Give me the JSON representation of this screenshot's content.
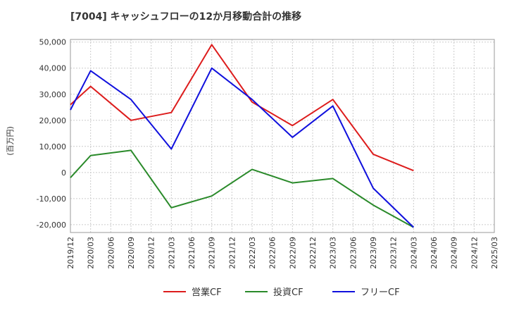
{
  "chart_data": {
    "type": "line",
    "title": "[7004]  キャッシュフローの12か月移動合計の推移",
    "ylabel": "(百万円)",
    "xlabel": "",
    "ylim": [
      -23000,
      51000
    ],
    "yticks": [
      50000,
      40000,
      30000,
      20000,
      10000,
      0,
      -10000,
      -20000
    ],
    "ytick_labels": [
      "50,000",
      "40,000",
      "30,000",
      "20,000",
      "10,000",
      "0",
      "-10,000",
      "-20,000"
    ],
    "categories": [
      "2019/12",
      "2020/03",
      "2020/06",
      "2020/09",
      "2020/12",
      "2021/03",
      "2021/06",
      "2021/09",
      "2021/12",
      "2022/03",
      "2022/06",
      "2022/09",
      "2022/12",
      "2023/03",
      "2023/06",
      "2023/09",
      "2023/12",
      "2024/03",
      "2024/06",
      "2024/09",
      "2024/12",
      "2025/03"
    ],
    "grid": true,
    "legend_position": "bottom",
    "series": [
      {
        "name": "営業CF",
        "color": "#dd1c1c",
        "values": [
          26000,
          33000,
          null,
          20000,
          null,
          23000,
          null,
          49000,
          null,
          27000,
          null,
          18000,
          null,
          28000,
          null,
          7000,
          null,
          700,
          null,
          null,
          null,
          null
        ]
      },
      {
        "name": "投資CF",
        "color": "#2a8a2a",
        "values": [
          -2000,
          6500,
          null,
          8500,
          null,
          -13500,
          null,
          -9000,
          null,
          1200,
          null,
          -4000,
          null,
          -2300,
          null,
          -12500,
          null,
          -21000,
          null,
          null,
          null,
          null
        ]
      },
      {
        "name": "フリーCF",
        "color": "#1010dd",
        "values": [
          24000,
          39000,
          null,
          28000,
          null,
          9000,
          null,
          40000,
          null,
          28000,
          null,
          13500,
          null,
          25500,
          null,
          -6000,
          null,
          -21000,
          null,
          null,
          null,
          null
        ]
      }
    ]
  }
}
